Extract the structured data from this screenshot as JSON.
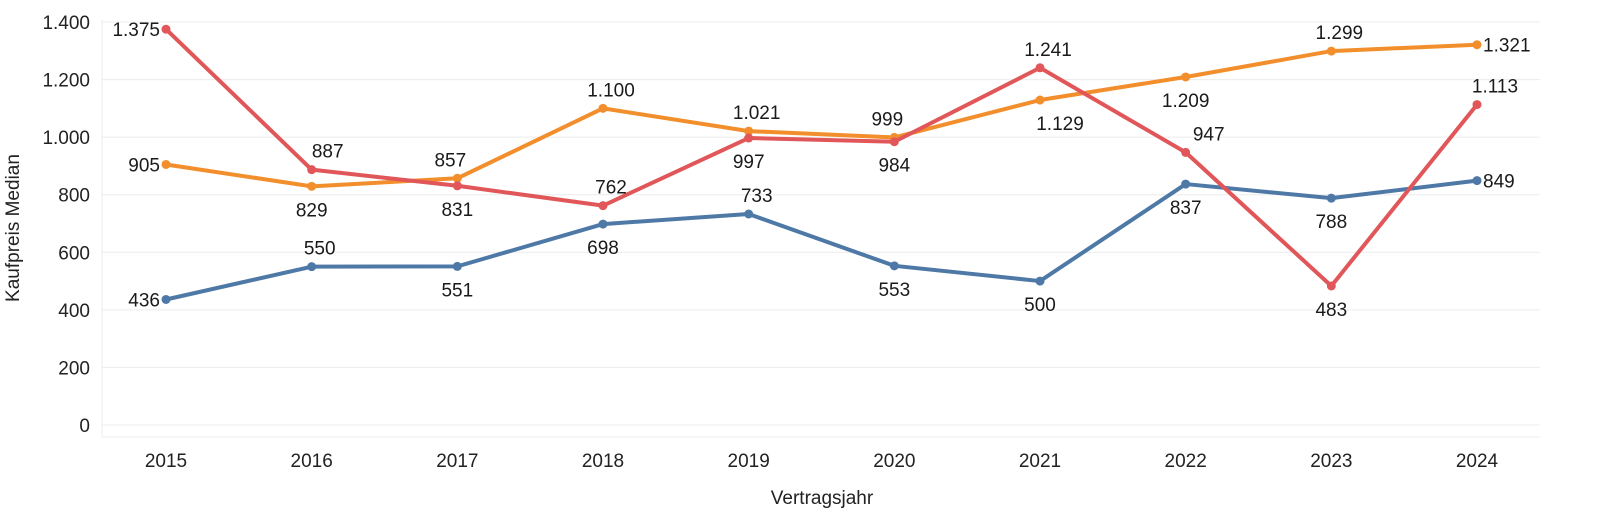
{
  "chart_data": {
    "type": "line",
    "title": "",
    "xlabel": "Vertragsjahr",
    "ylabel": "Kaufpreis Median",
    "x": [
      "2015",
      "2016",
      "2017",
      "2018",
      "2019",
      "2020",
      "2021",
      "2022",
      "2023",
      "2024"
    ],
    "ylim": [
      0,
      1400
    ],
    "yticks": [
      0,
      200,
      400,
      600,
      800,
      1000,
      1200,
      1400
    ],
    "ytick_labels": [
      "0",
      "200",
      "400",
      "600",
      "800",
      "1.000",
      "1.200",
      "1.400"
    ],
    "grid": true,
    "legend": "none",
    "series": [
      {
        "color": "#4e79a7",
        "values": [
          436,
          550,
          551,
          698,
          733,
          553,
          500,
          837,
          788,
          849
        ],
        "value_labels": [
          "436",
          "550",
          "551",
          "698",
          "733",
          "553",
          "500",
          "837",
          "788",
          "849"
        ]
      },
      {
        "color": "#f28e2b",
        "values": [
          905,
          829,
          857,
          1100,
          1021,
          999,
          1129,
          1209,
          1299,
          1321
        ],
        "value_labels": [
          "905",
          "829",
          "857",
          "1.100",
          "1.021",
          "999",
          "1.129",
          "1.209",
          "1.299",
          "1.321"
        ]
      },
      {
        "color": "#e15759",
        "values": [
          1375,
          887,
          831,
          762,
          997,
          984,
          1241,
          947,
          483,
          1113
        ],
        "value_labels": [
          "1.375",
          "887",
          "831",
          "762",
          "997",
          "984",
          "1.241",
          "947",
          "483",
          "1.113"
        ]
      }
    ]
  }
}
